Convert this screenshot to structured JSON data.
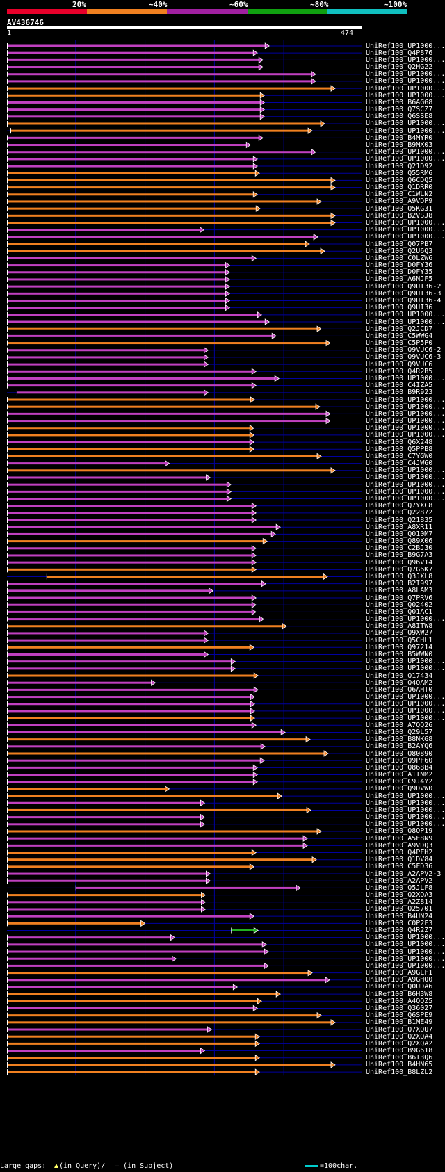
{
  "header": {
    "percent_labels": [
      "20%",
      "~40%",
      "~60%",
      "~80%",
      "~100%"
    ],
    "band_colors": [
      "#e8002a",
      "#f08020",
      "#a020a0",
      "#10a010",
      "#10c0c0"
    ]
  },
  "query": {
    "name": "AV436746",
    "start_label": "1",
    "end_label": "474",
    "length": 474
  },
  "colors": {
    "high": "#f08020",
    "mid": "#c040c0",
    "low": "#20b020",
    "gap_marker": "#ffff66",
    "grid": "#0000a0",
    "scale": "#00cccc"
  },
  "hits": [
    {
      "acc": "UniRef100_UP1000...",
      "s": 1,
      "e": 379,
      "c": "m"
    },
    {
      "acc": "UniRef100_Q4P876",
      "s": 1,
      "e": 362,
      "c": "m"
    },
    {
      "acc": "UniRef100_UP1000...",
      "s": 1,
      "e": 370,
      "c": "m"
    },
    {
      "acc": "UniRef100_Q2HG22",
      "s": 1,
      "e": 370,
      "c": "m"
    },
    {
      "acc": "UniRef100_UP1000...",
      "s": 1,
      "e": 446,
      "c": "m"
    },
    {
      "acc": "UniRef100_UP1000...",
      "s": 1,
      "e": 446,
      "c": "m"
    },
    {
      "acc": "UniRef100_UP1000...",
      "s": 1,
      "e": 474,
      "c": "o"
    },
    {
      "acc": "UniRef100_UP1000...",
      "s": 1,
      "e": 372,
      "c": "o"
    },
    {
      "acc": "UniRef100_B6AGG8",
      "s": 1,
      "e": 372,
      "c": "m"
    },
    {
      "acc": "UniRef100_Q7SCZ7",
      "s": 1,
      "e": 372,
      "c": "m"
    },
    {
      "acc": "UniRef100_Q6SSE8",
      "s": 1,
      "e": 372,
      "c": "m"
    },
    {
      "acc": "UniRef100_UP1000...",
      "s": 1,
      "e": 459,
      "c": "o"
    },
    {
      "acc": "UniRef100_UP1000...",
      "s": 6,
      "e": 441,
      "c": "o"
    },
    {
      "acc": "UniRef100_B4MYR0",
      "s": 1,
      "e": 370,
      "c": "m"
    },
    {
      "acc": "UniRef100_B9MX03",
      "s": 1,
      "e": 352,
      "c": "m"
    },
    {
      "acc": "UniRef100_UP1000...",
      "s": 1,
      "e": 446,
      "c": "m"
    },
    {
      "acc": "UniRef100_UP1000...",
      "s": 1,
      "e": 362,
      "c": "m"
    },
    {
      "acc": "UniRef100_Q21D92",
      "s": 1,
      "e": 362,
      "c": "m"
    },
    {
      "acc": "UniRef100_Q55RM6",
      "s": 1,
      "e": 365,
      "c": "o"
    },
    {
      "acc": "UniRef100_Q6CDQ5",
      "s": 1,
      "e": 474,
      "c": "o"
    },
    {
      "acc": "UniRef100_Q1DRR0",
      "s": 1,
      "e": 474,
      "c": "o"
    },
    {
      "acc": "UniRef100_C1WLN2",
      "s": 1,
      "e": 362,
      "c": "o"
    },
    {
      "acc": "UniRef100_A9VDP9",
      "s": 1,
      "e": 454,
      "c": "o"
    },
    {
      "acc": "UniRef100_Q5KG31",
      "s": 1,
      "e": 366,
      "c": "o"
    },
    {
      "acc": "UniRef100_B2VSJ8",
      "s": 1,
      "e": 474,
      "c": "o"
    },
    {
      "acc": "UniRef100_UP1000...",
      "s": 1,
      "e": 474,
      "c": "o"
    },
    {
      "acc": "UniRef100_UP1000...",
      "s": 1,
      "e": 285,
      "c": "m"
    },
    {
      "acc": "UniRef100_UP1000...",
      "s": 1,
      "e": 449,
      "c": "m"
    },
    {
      "acc": "UniRef100_Q07PB7",
      "s": 1,
      "e": 437,
      "c": "o"
    },
    {
      "acc": "UniRef100_Q2U6Q3",
      "s": 1,
      "e": 459,
      "c": "o"
    },
    {
      "acc": "UniRef100_C0LZW6",
      "s": 1,
      "e": 360,
      "c": "m"
    },
    {
      "acc": "UniRef100_D0FY36",
      "s": 1,
      "e": 322,
      "c": "m"
    },
    {
      "acc": "UniRef100_D0FY35",
      "s": 1,
      "e": 322,
      "c": "m"
    },
    {
      "acc": "UniRef100_A6NJF5",
      "s": 1,
      "e": 322,
      "c": "m"
    },
    {
      "acc": "UniRef100_Q9UI36-2",
      "s": 1,
      "e": 322,
      "c": "m"
    },
    {
      "acc": "UniRef100_Q9UI36-3",
      "s": 1,
      "e": 322,
      "c": "m"
    },
    {
      "acc": "UniRef100_Q9UI36-4",
      "s": 1,
      "e": 322,
      "c": "m"
    },
    {
      "acc": "UniRef100_Q9UI36",
      "s": 1,
      "e": 322,
      "c": "m"
    },
    {
      "acc": "UniRef100_UP1000...",
      "s": 1,
      "e": 368,
      "c": "m"
    },
    {
      "acc": "UniRef100_UP1000...",
      "s": 1,
      "e": 379,
      "c": "m"
    },
    {
      "acc": "UniRef100_Q2JCD7",
      "s": 1,
      "e": 454,
      "c": "o"
    },
    {
      "acc": "UniRef100_C5WWG4",
      "s": 1,
      "e": 389,
      "c": "m"
    },
    {
      "acc": "UniRef100_C5P5P0",
      "s": 1,
      "e": 467,
      "c": "o"
    },
    {
      "acc": "UniRef100_Q9VUC6-2",
      "s": 1,
      "e": 291,
      "c": "m"
    },
    {
      "acc": "UniRef100_Q9VUC6-3",
      "s": 1,
      "e": 291,
      "c": "m"
    },
    {
      "acc": "UniRef100_Q9VUC6",
      "s": 1,
      "e": 291,
      "c": "m"
    },
    {
      "acc": "UniRef100_Q4R2B5",
      "s": 1,
      "e": 360,
      "c": "m"
    },
    {
      "acc": "UniRef100_UP1000...",
      "s": 1,
      "e": 393,
      "c": "m"
    },
    {
      "acc": "UniRef100_C4IZA5",
      "s": 1,
      "e": 360,
      "c": "m"
    },
    {
      "acc": "UniRef100_B9R923",
      "s": 15,
      "e": 291,
      "c": "m"
    },
    {
      "acc": "UniRef100_UP1000...",
      "s": 1,
      "e": 358,
      "c": "o"
    },
    {
      "acc": "UniRef100_UP1000...",
      "s": 1,
      "e": 452,
      "c": "o"
    },
    {
      "acc": "UniRef100_UP1000...",
      "s": 1,
      "e": 467,
      "c": "m"
    },
    {
      "acc": "UniRef100_UP1000...",
      "s": 1,
      "e": 467,
      "c": "m"
    },
    {
      "acc": "UniRef100_UP1000...",
      "s": 1,
      "e": 357,
      "c": "o"
    },
    {
      "acc": "UniRef100_UP1000...",
      "s": 1,
      "e": 357,
      "c": "o"
    },
    {
      "acc": "UniRef100_Q6X248",
      "s": 1,
      "e": 357,
      "c": "m"
    },
    {
      "acc": "UniRef100_Q5PPB8",
      "s": 1,
      "e": 357,
      "c": "o"
    },
    {
      "acc": "UniRef100_C7YGW0",
      "s": 1,
      "e": 454,
      "c": "o"
    },
    {
      "acc": "UniRef100_C4JW60",
      "s": 1,
      "e": 235,
      "c": "m"
    },
    {
      "acc": "UniRef100_UP1000...",
      "s": 1,
      "e": 474,
      "c": "o"
    },
    {
      "acc": "UniRef100_UP1000...",
      "s": 1,
      "e": 294,
      "c": "m"
    },
    {
      "acc": "UniRef100_UP1000...",
      "s": 1,
      "e": 324,
      "c": "m"
    },
    {
      "acc": "UniRef100_UP1000...",
      "s": 1,
      "e": 324,
      "c": "m"
    },
    {
      "acc": "UniRef100_UP1000...",
      "s": 1,
      "e": 324,
      "c": "m"
    },
    {
      "acc": "UniRef100_Q7YXC8",
      "s": 1,
      "e": 360,
      "c": "m"
    },
    {
      "acc": "UniRef100_Q22872",
      "s": 1,
      "e": 360,
      "c": "m"
    },
    {
      "acc": "UniRef100_Q21835",
      "s": 1,
      "e": 360,
      "c": "m"
    },
    {
      "acc": "UniRef100_A8XR11",
      "s": 1,
      "e": 395,
      "c": "m"
    },
    {
      "acc": "UniRef100_Q010M7",
      "s": 1,
      "e": 388,
      "c": "m"
    },
    {
      "acc": "UniRef100_Q89X06",
      "s": 1,
      "e": 376,
      "c": "o"
    },
    {
      "acc": "UniRef100_C2BJ30",
      "s": 1,
      "e": 360,
      "c": "m"
    },
    {
      "acc": "UniRef100_B9G7A3",
      "s": 1,
      "e": 360,
      "c": "m"
    },
    {
      "acc": "UniRef100_Q96V14",
      "s": 1,
      "e": 360,
      "c": "m"
    },
    {
      "acc": "UniRef100_Q7G6K7",
      "s": 1,
      "e": 360,
      "c": "o"
    },
    {
      "acc": "UniRef100_Q3JXL8",
      "s": 58,
      "e": 463,
      "c": "o"
    },
    {
      "acc": "UniRef100_B2I997",
      "s": 1,
      "e": 374,
      "c": "m"
    },
    {
      "acc": "UniRef100_A8LAM3",
      "s": 1,
      "e": 298,
      "c": "m"
    },
    {
      "acc": "UniRef100_Q7PRV6",
      "s": 1,
      "e": 360,
      "c": "m"
    },
    {
      "acc": "UniRef100_Q02402",
      "s": 1,
      "e": 360,
      "c": "m"
    },
    {
      "acc": "UniRef100_Q01AC1",
      "s": 1,
      "e": 360,
      "c": "m"
    },
    {
      "acc": "UniRef100_UP1000...",
      "s": 1,
      "e": 371,
      "c": "m"
    },
    {
      "acc": "UniRef100_A8ITW8",
      "s": 1,
      "e": 404,
      "c": "o"
    },
    {
      "acc": "UniRef100_Q9XW27",
      "s": 1,
      "e": 291,
      "c": "m"
    },
    {
      "acc": "UniRef100_Q5CHL1",
      "s": 1,
      "e": 291,
      "c": "m"
    },
    {
      "acc": "UniRef100_Q97214",
      "s": 1,
      "e": 357,
      "c": "o"
    },
    {
      "acc": "UniRef100_B5WWN0",
      "s": 1,
      "e": 291,
      "c": "m"
    },
    {
      "acc": "UniRef100_UP1000...",
      "s": 1,
      "e": 330,
      "c": "m"
    },
    {
      "acc": "UniRef100_UP1000...",
      "s": 1,
      "e": 330,
      "c": "m"
    },
    {
      "acc": "UniRef100_Q17434",
      "s": 1,
      "e": 363,
      "c": "o"
    },
    {
      "acc": "UniRef100_Q4QAM2",
      "s": 1,
      "e": 215,
      "c": "m"
    },
    {
      "acc": "UniRef100_Q6AHT0",
      "s": 1,
      "e": 363,
      "c": "m"
    },
    {
      "acc": "UniRef100_UP1000...",
      "s": 1,
      "e": 358,
      "c": "m"
    },
    {
      "acc": "UniRef100_UP1000...",
      "s": 1,
      "e": 358,
      "c": "m"
    },
    {
      "acc": "UniRef100_UP1000...",
      "s": 1,
      "e": 358,
      "c": "m"
    },
    {
      "acc": "UniRef100_UP1000...",
      "s": 1,
      "e": 358,
      "c": "o"
    },
    {
      "acc": "UniRef100_A7QQ26",
      "s": 1,
      "e": 360,
      "c": "m"
    },
    {
      "acc": "UniRef100_Q29L57",
      "s": 1,
      "e": 402,
      "c": "m"
    },
    {
      "acc": "UniRef100_B8NKG8",
      "s": 1,
      "e": 438,
      "c": "o"
    },
    {
      "acc": "UniRef100_B2AYQ6",
      "s": 1,
      "e": 373,
      "c": "m"
    },
    {
      "acc": "UniRef100_Q80890",
      "s": 1,
      "e": 464,
      "c": "o"
    },
    {
      "acc": "UniRef100_Q9PF60",
      "s": 1,
      "e": 372,
      "c": "m"
    },
    {
      "acc": "UniRef100_Q868B4",
      "s": 1,
      "e": 362,
      "c": "m"
    },
    {
      "acc": "UniRef100_A1INM2",
      "s": 1,
      "e": 362,
      "c": "m"
    },
    {
      "acc": "UniRef100_C9J4Y2",
      "s": 1,
      "e": 362,
      "c": "m"
    },
    {
      "acc": "UniRef100_Q9DVW0",
      "s": 1,
      "e": 235,
      "c": "o"
    },
    {
      "acc": "UniRef100_UP1000...",
      "s": 1,
      "e": 397,
      "c": "o"
    },
    {
      "acc": "UniRef100_UP1000...",
      "s": 1,
      "e": 286,
      "c": "m"
    },
    {
      "acc": "UniRef100_UP1000...",
      "s": 1,
      "e": 439,
      "c": "o"
    },
    {
      "acc": "UniRef100_UP1000...",
      "s": 1,
      "e": 286,
      "c": "m"
    },
    {
      "acc": "UniRef100_UP1000...",
      "s": 1,
      "e": 286,
      "c": "m"
    },
    {
      "acc": "UniRef100_Q8QP19",
      "s": 1,
      "e": 454,
      "c": "o"
    },
    {
      "acc": "UniRef100_A5E8N9",
      "s": 1,
      "e": 434,
      "c": "m"
    },
    {
      "acc": "UniRef100_A9VDQ3",
      "s": 1,
      "e": 434,
      "c": "m"
    },
    {
      "acc": "UniRef100_Q4PFH2",
      "s": 1,
      "e": 360,
      "c": "o"
    },
    {
      "acc": "UniRef100_Q1DV84",
      "s": 1,
      "e": 447,
      "c": "o"
    },
    {
      "acc": "UniRef100_C5FD36",
      "s": 1,
      "e": 357,
      "c": "o"
    },
    {
      "acc": "UniRef100_A2APV2-3",
      "s": 1,
      "e": 294,
      "c": "m"
    },
    {
      "acc": "UniRef100_A2APV2",
      "s": 1,
      "e": 294,
      "c": "m"
    },
    {
      "acc": "UniRef100_Q5JLF8",
      "s": 100,
      "e": 424,
      "c": "m"
    },
    {
      "acc": "UniRef100_Q2XQA3",
      "s": 1,
      "e": 287,
      "c": "o"
    },
    {
      "acc": "UniRef100_A2Z814",
      "s": 1,
      "e": 287,
      "c": "m"
    },
    {
      "acc": "UniRef100_Q25701",
      "s": 1,
      "e": 287,
      "c": "m"
    },
    {
      "acc": "UniRef100_B4UN24",
      "s": 1,
      "e": 357,
      "c": "m"
    },
    {
      "acc": "UniRef100_C0P2F3",
      "s": 1,
      "e": 200,
      "c": "o"
    },
    {
      "acc": "UniRef100_Q4R2Z7",
      "s": 324,
      "e": 363,
      "c": "g"
    },
    {
      "acc": "UniRef100_UP1000...",
      "s": 1,
      "e": 243,
      "c": "m"
    },
    {
      "acc": "UniRef100_UP1000...",
      "s": 1,
      "e": 375,
      "c": "m"
    },
    {
      "acc": "UniRef100_UP1000...",
      "s": 1,
      "e": 378,
      "c": "m"
    },
    {
      "acc": "UniRef100_UP1000...",
      "s": 1,
      "e": 245,
      "c": "m"
    },
    {
      "acc": "UniRef100_UP1000...",
      "s": 1,
      "e": 378,
      "c": "m"
    },
    {
      "acc": "UniRef100_A9GLF1",
      "s": 1,
      "e": 441,
      "c": "o"
    },
    {
      "acc": "UniRef100_A9GHQ0",
      "s": 1,
      "e": 466,
      "c": "m"
    },
    {
      "acc": "UniRef100_Q0UDA6",
      "s": 1,
      "e": 333,
      "c": "m"
    },
    {
      "acc": "UniRef100_B6H3W8",
      "s": 1,
      "e": 395,
      "c": "o"
    },
    {
      "acc": "UniRef100_A4QQZ5",
      "s": 1,
      "e": 368,
      "c": "o"
    },
    {
      "acc": "UniRef100_Q36027",
      "s": 1,
      "e": 362,
      "c": "m"
    },
    {
      "acc": "UniRef100_Q6SPE9",
      "s": 1,
      "e": 454,
      "c": "o"
    },
    {
      "acc": "UniRef100_B1ME49",
      "s": 1,
      "e": 474,
      "c": "o"
    },
    {
      "acc": "UniRef100_Q7XQU7",
      "s": 1,
      "e": 296,
      "c": "m"
    },
    {
      "acc": "UniRef100_Q2XQA4",
      "s": 1,
      "e": 365,
      "c": "o"
    },
    {
      "acc": "UniRef100_Q2XQA2",
      "s": 1,
      "e": 365,
      "c": "o"
    },
    {
      "acc": "UniRef100_B9G618",
      "s": 1,
      "e": 286,
      "c": "m"
    },
    {
      "acc": "UniRef100_B6T3Q6",
      "s": 1,
      "e": 365,
      "c": "o"
    },
    {
      "acc": "UniRef100_B4HN65",
      "s": 1,
      "e": 474,
      "c": "o"
    },
    {
      "acc": "UniRef100_B8LZL2",
      "s": 1,
      "e": 365,
      "c": "o"
    }
  ],
  "legend": {
    "gaps_label": "Large gaps:",
    "in_query": "(in Query)/",
    "in_subject": "– (in Subject)",
    "scale_label": "=100char."
  }
}
